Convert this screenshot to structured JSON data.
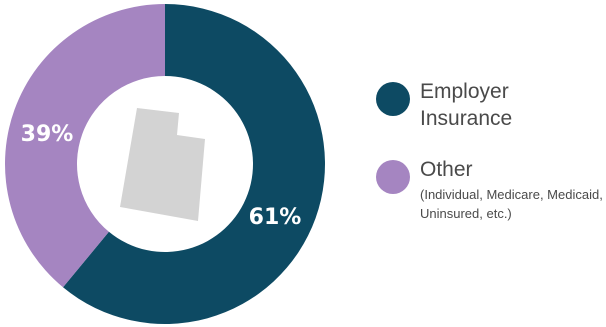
{
  "chart_data": {
    "type": "pie",
    "categories": [
      "Employer Insurance",
      "Other"
    ],
    "values": [
      61,
      39
    ],
    "value_labels": [
      "61%",
      "39%"
    ],
    "colors": [
      "#0d4a63",
      "#a585c1"
    ],
    "legend": [
      {
        "label": "Employer Insurance",
        "sublabel": "",
        "color": "#0d4a63",
        "icon": "circle-swatch"
      },
      {
        "label": "Other",
        "sublabel": "(Individual, Medicare, Medicaid, Uninsured, etc.)",
        "color": "#a585c1",
        "icon": "circle-swatch"
      }
    ],
    "legend_position": "right",
    "center_icon": "utah-state-silhouette-icon",
    "center_icon_color": "#d3d3d3"
  }
}
